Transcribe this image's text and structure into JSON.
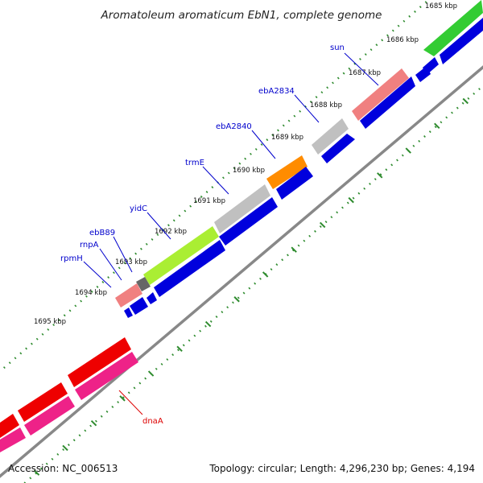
{
  "title": "Aromatoleum aromaticum EbN1, complete genome",
  "footer": {
    "accession": "Accession: NC_006513",
    "summary": "Topology: circular; Length: 4,296,230 bp; Genes: 4,194"
  },
  "colors": {
    "backbone": "#888888",
    "tick": "#2e8b2e",
    "label_blue": "#0000cc",
    "label_red": "#dd0000",
    "cds_blue": "#0000dd"
  },
  "kbp_labels": [
    "1685 kbp",
    "1686 kbp",
    "1687 kbp",
    "1688 kbp",
    "1689 kbp",
    "1690 kbp",
    "1691 kbp",
    "1692 kbp",
    "1693 kbp",
    "1694 kbp",
    "1695 kbp"
  ],
  "gene_labels": [
    {
      "name": "sun",
      "color": "#0000cc"
    },
    {
      "name": "ebA2834",
      "color": "#0000cc"
    },
    {
      "name": "ebA2840",
      "color": "#0000cc"
    },
    {
      "name": "trmE",
      "color": "#0000cc"
    },
    {
      "name": "yidC",
      "color": "#0000cc"
    },
    {
      "name": "ebB89",
      "color": "#0000cc"
    },
    {
      "name": "rnpA",
      "color": "#0000cc"
    },
    {
      "name": "rpmH",
      "color": "#0000cc"
    },
    {
      "name": "dnaA",
      "color": "#dd0000"
    }
  ],
  "features": [
    {
      "name": "green-gene-feature",
      "color": "#33cc33"
    },
    {
      "name": "sun-feature",
      "color": "#f08080"
    },
    {
      "name": "ebA2834-feature",
      "color": "#c0c0c0"
    },
    {
      "name": "ebA2840-feature",
      "color": "#ff8c00"
    },
    {
      "name": "trmE-feature",
      "color": "#c0c0c0"
    },
    {
      "name": "yidC-feature",
      "color": "#aaee33"
    },
    {
      "name": "ebB89-feature",
      "color": "#666666"
    },
    {
      "name": "rnpA-feature",
      "color": "#f08080"
    },
    {
      "name": "dnaA-red-feature",
      "color": "#ee0000"
    },
    {
      "name": "dnaA-magenta-feature",
      "color": "#ee2288"
    }
  ]
}
